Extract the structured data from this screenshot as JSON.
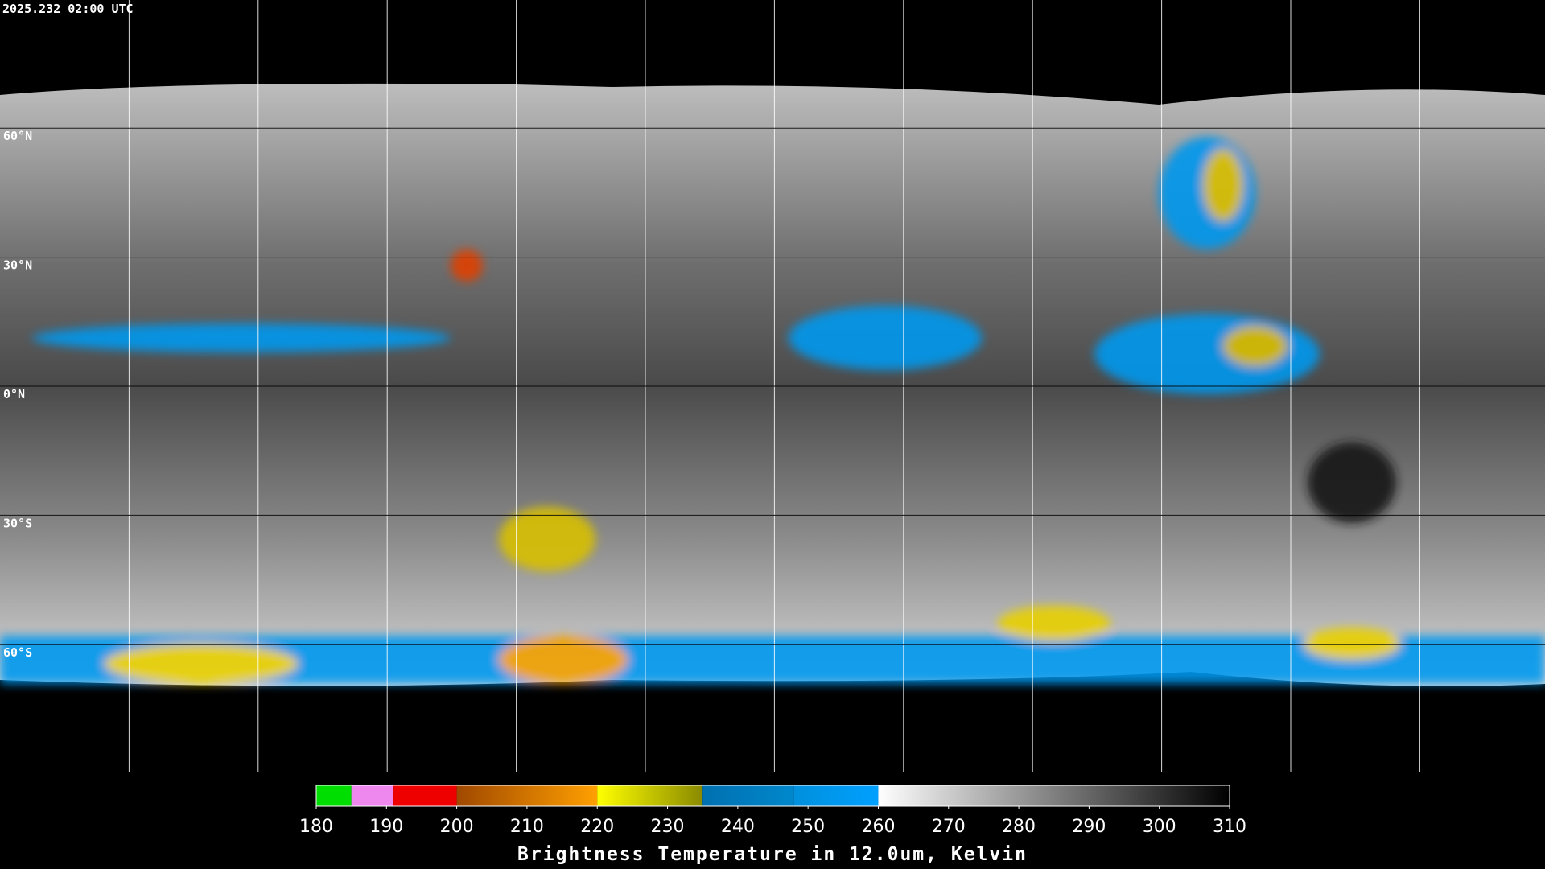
{
  "timestamp": "2025.232 02:00 UTC",
  "lat_labels": [
    "60°N",
    "30°N",
    "0°N",
    "30°S",
    "60°S"
  ],
  "colorbar": {
    "title": "Brightness Temperature in 12.0um, Kelvin",
    "range": [
      180,
      310
    ],
    "ticks": [
      180,
      190,
      200,
      210,
      220,
      230,
      240,
      250,
      260,
      270,
      280,
      290,
      300,
      310
    ],
    "segments": [
      {
        "from": 180,
        "to": 185,
        "colors": [
          "#00dd00",
          "#00dd00"
        ]
      },
      {
        "from": 185,
        "to": 191,
        "colors": [
          "#ee88ee",
          "#ee88ee"
        ]
      },
      {
        "from": 191,
        "to": 200,
        "colors": [
          "#ee0000",
          "#ee0000"
        ]
      },
      {
        "from": 200,
        "to": 220,
        "colors": [
          "#a04800",
          "#ffa000"
        ]
      },
      {
        "from": 220,
        "to": 235,
        "colors": [
          "#ffff00",
          "#8a8a00"
        ]
      },
      {
        "from": 235,
        "to": 248,
        "colors": [
          "#0070b0",
          "#0088cc"
        ]
      },
      {
        "from": 248,
        "to": 260,
        "colors": [
          "#0090dd",
          "#00a0ff"
        ]
      },
      {
        "from": 260,
        "to": 310,
        "colors": [
          "#ffffff",
          "#000000"
        ]
      }
    ]
  }
}
